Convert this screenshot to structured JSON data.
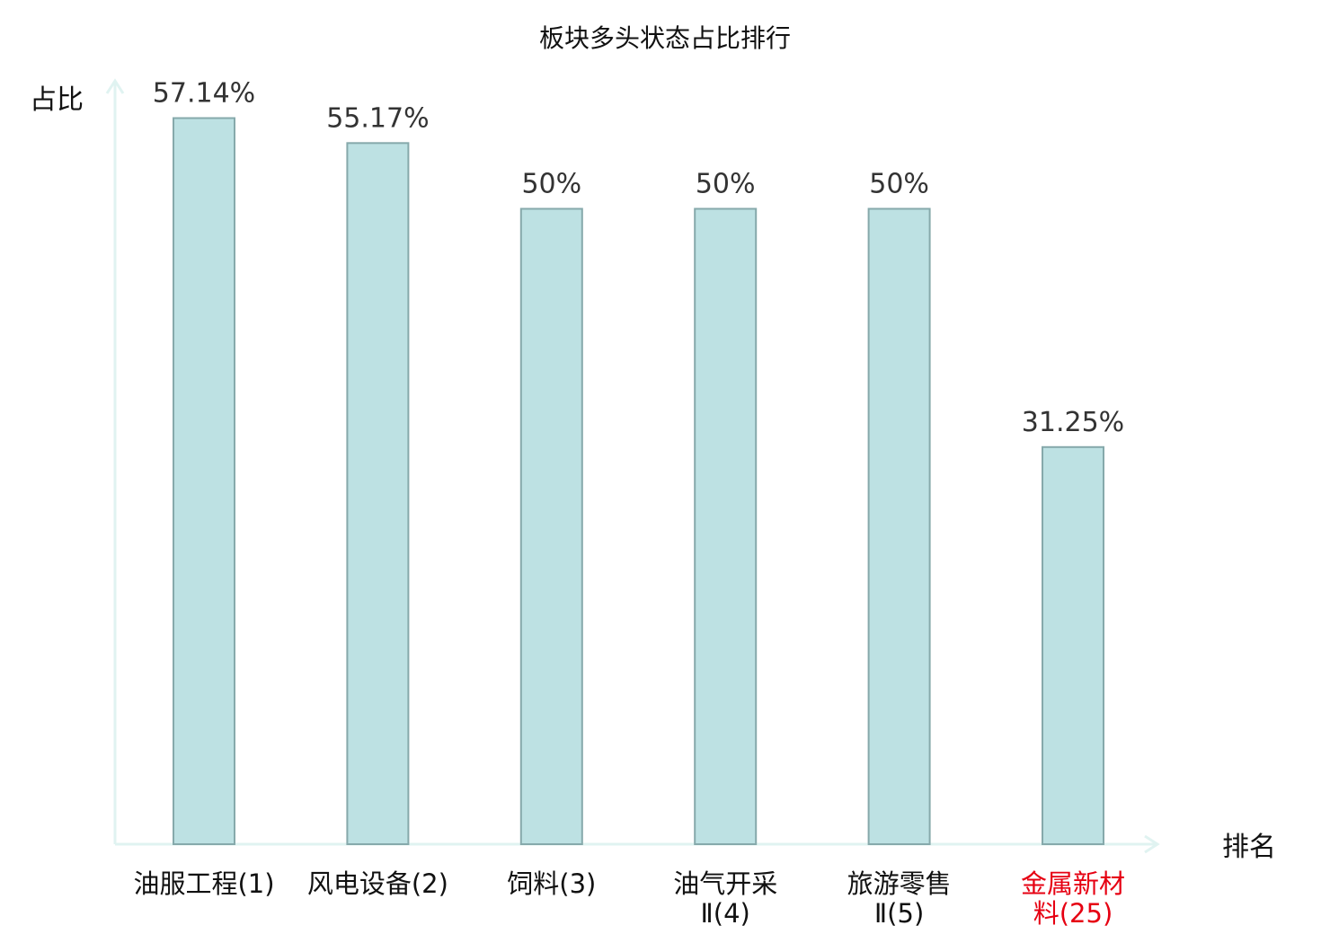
{
  "chart_data": {
    "type": "bar",
    "title": "板块多头状态占比排行",
    "ylabel": "占比",
    "xlabel": "排名",
    "ylim": [
      0,
      60
    ],
    "categories": [
      {
        "name_lines": [
          "油服工程(1)"
        ],
        "highlight": false
      },
      {
        "name_lines": [
          "风电设备(2)"
        ],
        "highlight": false
      },
      {
        "name_lines": [
          "饲料(3)"
        ],
        "highlight": false
      },
      {
        "name_lines": [
          "油气开采",
          "Ⅱ(4)"
        ],
        "highlight": false
      },
      {
        "name_lines": [
          "旅游零售",
          "Ⅱ(5)"
        ],
        "highlight": false
      },
      {
        "name_lines": [
          "金属新材",
          "料(25)"
        ],
        "highlight": true
      }
    ],
    "values": [
      57.14,
      55.17,
      50,
      50,
      50,
      31.25
    ],
    "value_labels": [
      "57.14%",
      "55.17%",
      "50%",
      "50%",
      "50%",
      "31.25%"
    ],
    "colors": {
      "bar_fill": "#bde1e3",
      "bar_stroke": "#86a9ab",
      "axis": "#e0f3f1",
      "highlight": "#e60012"
    }
  }
}
